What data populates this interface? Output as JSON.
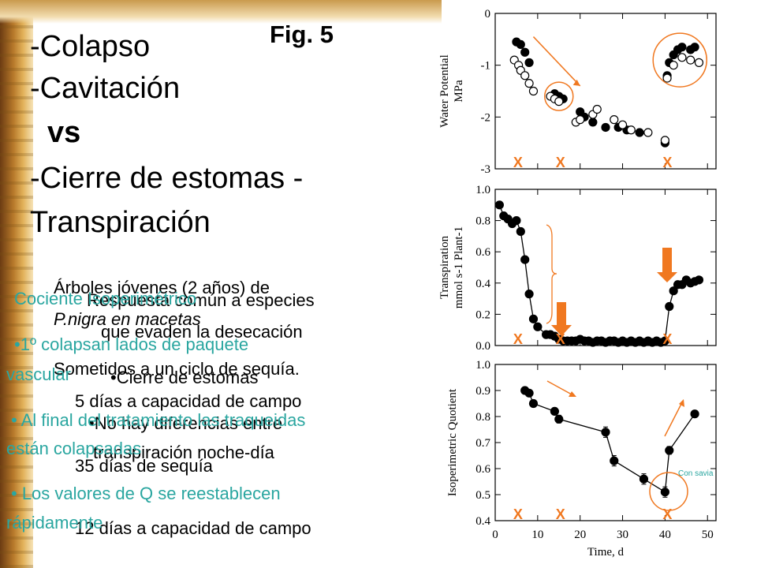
{
  "slide": {
    "fig_label": "Fig. 5",
    "title": {
      "colapso": "-Colapso",
      "cavitacion": "-Cavitación",
      "vs": "vs",
      "cierre": "-Cierre de estomas -",
      "transpiracion": "Transpiración"
    },
    "layer_a": {
      "l1": "Árboles jóvenes (2 años) de",
      "l2": "P.nigra en macetas",
      "l3": "Sometidos a un ciclo de sequía.",
      "l4": "5 días a capacidad de campo",
      "l5": "35 días de sequía",
      "l6": "12 días a capacidad de campo"
    },
    "layer_b": {
      "l1": "Respuesta común a especies",
      "l2": "que evaden la desecación",
      "l3": "•Cierre de estomas",
      "l4": "•No hay diferencias entre",
      "l5": "transpiración noche-día"
    },
    "layer_c": {
      "l1": "Cociente Isoperimétrico",
      "l2": "•1º colapsan lados de paquete",
      "l3": "vascular",
      "l4": "• Al final del tratamiento las traqueidas",
      "l5": "están colapsadas",
      "l6": "• Los valores de Q se reestablecen",
      "l7": "rápidamente"
    }
  },
  "colors": {
    "teal": "#2aa6a0",
    "orange": "#f07820",
    "marker": "#000000"
  },
  "markers": {
    "x_label": "X",
    "x_positions_days": [
      5,
      15,
      40
    ],
    "con_savia": "Con savia"
  },
  "chart_data": [
    {
      "type": "scatter",
      "title": "",
      "xlabel": "",
      "ylabel": "Water Potential MPa",
      "xlim": [
        0,
        52
      ],
      "ylim": [
        -3,
        0
      ],
      "yticks": [
        0,
        -1,
        -2,
        -3
      ],
      "series": [
        {
          "style": "filled",
          "x": [
            5,
            6,
            7,
            8,
            14,
            15,
            16,
            20,
            21,
            23,
            26,
            29,
            31,
            34,
            40,
            40.5,
            41,
            42,
            43,
            44,
            46,
            47
          ],
          "y": [
            -0.55,
            -0.6,
            -0.75,
            -0.95,
            -1.55,
            -1.6,
            -1.65,
            -1.9,
            -2.0,
            -2.1,
            -2.2,
            -2.2,
            -2.25,
            -2.3,
            -2.5,
            -1.2,
            -0.95,
            -0.8,
            -0.7,
            -0.65,
            -0.7,
            -0.65
          ]
        },
        {
          "style": "open",
          "x": [
            4.5,
            5.5,
            6,
            7,
            8,
            9,
            13,
            14,
            15,
            19,
            20,
            23,
            24,
            28,
            30,
            32,
            36,
            40,
            40.5,
            42,
            44,
            46,
            48
          ],
          "y": [
            -0.9,
            -1.0,
            -1.1,
            -1.2,
            -1.35,
            -1.5,
            -1.6,
            -1.65,
            -1.7,
            -2.1,
            -2.05,
            -1.95,
            -1.85,
            -2.05,
            -2.15,
            -2.25,
            -2.3,
            -2.45,
            -1.25,
            -1.0,
            -0.85,
            -0.9,
            -0.95
          ]
        }
      ]
    },
    {
      "type": "line",
      "title": "",
      "xlabel": "",
      "ylabel": "Transpiration mmol s-1 Plant-1",
      "xlim": [
        0,
        52
      ],
      "ylim": [
        0,
        1.0
      ],
      "yticks": [
        0.0,
        0.2,
        0.4,
        0.6,
        0.8,
        1.0
      ],
      "series": [
        {
          "x": [
            1,
            2,
            3,
            4,
            5,
            6,
            7,
            8,
            9,
            10,
            12,
            13,
            14,
            15,
            16,
            17,
            18,
            19,
            20,
            21,
            22,
            23,
            24,
            25,
            26,
            27,
            28,
            29,
            30,
            31,
            32,
            33,
            34,
            35,
            36,
            37,
            38,
            39,
            40,
            41,
            42,
            43,
            44,
            45,
            46,
            47,
            48
          ],
          "y": [
            0.9,
            0.83,
            0.81,
            0.78,
            0.8,
            0.73,
            0.55,
            0.33,
            0.17,
            0.12,
            0.07,
            0.07,
            0.06,
            0.04,
            0.03,
            0.03,
            0.03,
            0.03,
            0.04,
            0.03,
            0.03,
            0.02,
            0.03,
            0.03,
            0.02,
            0.03,
            0.03,
            0.02,
            0.03,
            0.02,
            0.03,
            0.02,
            0.03,
            0.02,
            0.03,
            0.02,
            0.03,
            0.02,
            0.03,
            0.25,
            0.35,
            0.39,
            0.39,
            0.42,
            0.4,
            0.41,
            0.42
          ]
        }
      ]
    },
    {
      "type": "line",
      "title": "",
      "xlabel": "Time, d",
      "ylabel": "Isoperimetric Quotient",
      "xlim": [
        0,
        52
      ],
      "ylim": [
        0.4,
        1.0
      ],
      "yticks": [
        0.4,
        0.5,
        0.6,
        0.7,
        0.8,
        0.9,
        1.0
      ],
      "xticks": [
        0,
        10,
        20,
        30,
        40,
        50
      ],
      "series": [
        {
          "x": [
            7,
            8,
            9,
            14,
            15,
            26,
            28,
            35,
            40,
            41,
            47
          ],
          "y": [
            0.9,
            0.89,
            0.85,
            0.82,
            0.79,
            0.74,
            0.63,
            0.56,
            0.51,
            0.67,
            0.81
          ],
          "err": [
            0.0,
            0.0,
            0.0,
            0.0,
            0.015,
            0.02,
            0.02,
            0.02,
            0.02,
            0.015,
            0.01
          ]
        }
      ]
    }
  ]
}
